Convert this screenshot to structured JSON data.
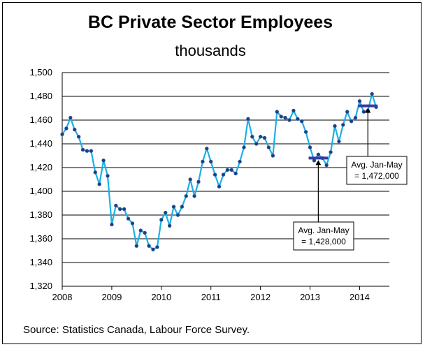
{
  "chart_data": {
    "type": "line",
    "title": "BC Private Sector Employees",
    "subtitle": "thousands",
    "source": "Source: Statistics Canada, Labour Force Survey.",
    "ylim": [
      1320,
      1500
    ],
    "yticks": [
      "1,320",
      "1,340",
      "1,360",
      "1,380",
      "1,400",
      "1,420",
      "1,440",
      "1,460",
      "1,480",
      "1,500"
    ],
    "yticks_values": [
      1320,
      1340,
      1360,
      1380,
      1400,
      1420,
      1440,
      1460,
      1480,
      1500
    ],
    "xticks": [
      "2008",
      "2009",
      "2010",
      "2011",
      "2012",
      "2013",
      "2014"
    ],
    "grid": "horizontal",
    "series": [
      {
        "color": "#1ab0e8",
        "start": "2008-01",
        "values": [
          1448,
          1453,
          1462,
          1452,
          1446,
          1435,
          1434,
          1434,
          1416,
          1406,
          1426,
          1413,
          1372,
          1388,
          1385,
          1385,
          1377,
          1373,
          1354,
          1367,
          1365,
          1354,
          1351,
          1353,
          1376,
          1382,
          1371,
          1387,
          1380,
          1387,
          1396,
          1410,
          1396,
          1408,
          1425,
          1436,
          1425,
          1414,
          1404,
          1414,
          1418,
          1418,
          1415,
          1425,
          1437,
          1461,
          1446,
          1440,
          1446,
          1445,
          1437,
          1430,
          1467,
          1463,
          1462,
          1460,
          1468,
          1461,
          1459,
          1450,
          1437,
          1426,
          1431,
          1428,
          1422,
          1433,
          1455,
          1442,
          1456,
          1467,
          1459,
          1462,
          1476,
          1467,
          1468,
          1482,
          1471
        ]
      }
    ],
    "annotations": [
      {
        "line1": "Avg. Jan-May",
        "line2": "= 1,428,000",
        "value": 1428,
        "from": "2013-01",
        "to": "2013-05",
        "color": "#3a3aa0"
      },
      {
        "line1": "Avg. Jan-May",
        "line2": "= 1,472,000",
        "value": 1472,
        "from": "2014-01",
        "to": "2014-05",
        "color": "#3a3aa0"
      }
    ],
    "marker_color": "#1f3f7a"
  }
}
